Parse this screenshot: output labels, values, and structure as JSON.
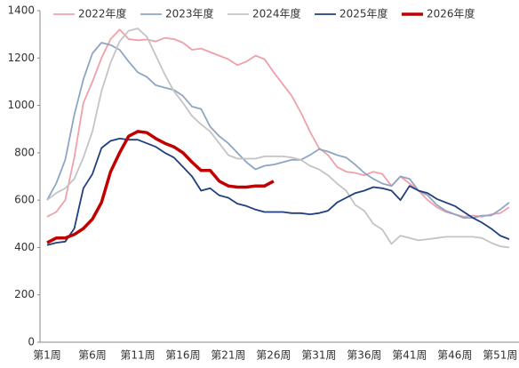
{
  "chart_data": {
    "type": "line",
    "categories": [
      "第1周",
      null,
      null,
      null,
      null,
      "第6周",
      null,
      null,
      null,
      null,
      "第11周",
      null,
      null,
      null,
      null,
      "第16周",
      null,
      null,
      null,
      null,
      "第21周",
      null,
      null,
      null,
      null,
      "第26周",
      null,
      null,
      null,
      null,
      "第31周",
      null,
      null,
      null,
      null,
      "第36周",
      null,
      null,
      null,
      null,
      "第41周",
      null,
      null,
      null,
      null,
      "第46周",
      null,
      null,
      null,
      null,
      "第51周",
      null
    ],
    "series": [
      {
        "name": "2022年度",
        "color": "#f0a0a8",
        "values": [
          530,
          550,
          600,
          780,
          1010,
          1100,
          1200,
          1280,
          1320,
          1280,
          1275,
          1278,
          1270,
          1285,
          1280,
          1265,
          1235,
          1240,
          1225,
          1210,
          1195,
          1170,
          1185,
          1210,
          1195,
          1140,
          1090,
          1040,
          970,
          890,
          820,
          790,
          740,
          720,
          715,
          705,
          720,
          710,
          660,
          700,
          670,
          640,
          600,
          570,
          550,
          540,
          530,
          535,
          530,
          540,
          545,
          570
        ]
      },
      {
        "name": "2023年度",
        "color": "#8fa5c4",
        "values": [
          600,
          670,
          770,
          960,
          1110,
          1220,
          1265,
          1255,
          1235,
          1185,
          1140,
          1120,
          1085,
          1075,
          1065,
          1040,
          995,
          985,
          910,
          870,
          840,
          800,
          760,
          730,
          745,
          750,
          760,
          770,
          770,
          790,
          815,
          805,
          790,
          780,
          750,
          715,
          690,
          670,
          660,
          700,
          690,
          640,
          620,
          580,
          555,
          540,
          525,
          525,
          535,
          535,
          560,
          590
        ]
      },
      {
        "name": "2024年度",
        "color": "#c4c4c4",
        "values": [
          600,
          630,
          650,
          690,
          780,
          890,
          1060,
          1180,
          1270,
          1315,
          1325,
          1290,
          1210,
          1130,
          1060,
          1010,
          955,
          920,
          890,
          840,
          790,
          775,
          775,
          775,
          785,
          785,
          785,
          780,
          770,
          745,
          730,
          705,
          670,
          640,
          580,
          555,
          500,
          475,
          415,
          450,
          440,
          430,
          435,
          440,
          445,
          445,
          445,
          445,
          440,
          420,
          405,
          400
        ]
      },
      {
        "name": "2025年度",
        "color": "#1f3f7f",
        "values": [
          410,
          420,
          425,
          480,
          650,
          710,
          820,
          850,
          860,
          855,
          855,
          840,
          825,
          800,
          780,
          740,
          700,
          640,
          650,
          620,
          610,
          585,
          575,
          560,
          550,
          550,
          550,
          545,
          545,
          540,
          545,
          555,
          590,
          610,
          630,
          640,
          655,
          650,
          640,
          600,
          660,
          640,
          630,
          605,
          590,
          575,
          550,
          525,
          505,
          480,
          450,
          435
        ]
      },
      {
        "name": "2026年度",
        "color": "#c00000",
        "values": [
          420,
          440,
          440,
          455,
          480,
          520,
          590,
          720,
          800,
          870,
          890,
          885,
          860,
          840,
          825,
          800,
          760,
          725,
          725,
          680,
          660,
          655,
          655,
          660,
          660,
          680,
          null,
          null,
          null,
          null,
          null,
          null,
          null,
          null,
          null,
          null,
          null,
          null,
          null,
          null,
          null,
          null,
          null,
          null,
          null,
          null,
          null,
          null,
          null,
          null,
          null,
          null
        ]
      }
    ],
    "ylim": [
      0,
      1400
    ],
    "yticks": [
      0,
      200,
      400,
      600,
      800,
      1000,
      1200,
      1400
    ]
  }
}
